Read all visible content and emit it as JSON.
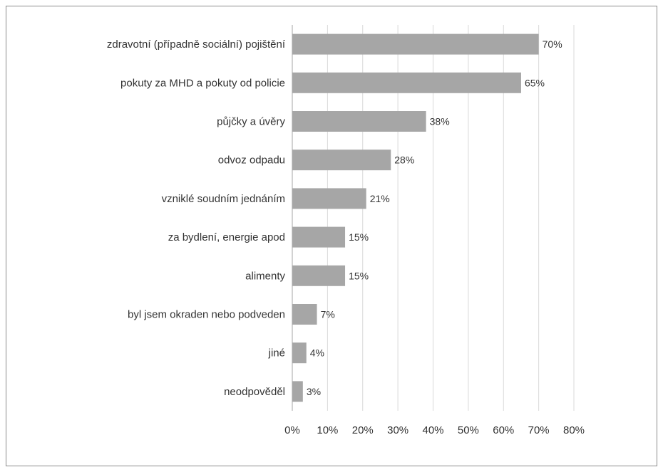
{
  "chart_data": {
    "type": "bar",
    "orientation": "horizontal",
    "categories": [
      "zdravotní (případně sociální) pojištění",
      "pokuty za MHD a pokuty od policie",
      "půjčky a úvěry",
      "odvoz odpadu",
      "vzniklé soudním jednáním",
      "za bydlení, energie apod",
      "alimenty",
      "byl jsem okraden nebo podveden",
      "jiné",
      "neodpověděl"
    ],
    "values": [
      70,
      65,
      38,
      28,
      21,
      15,
      15,
      7,
      4,
      3
    ],
    "value_labels": [
      "70%",
      "65%",
      "38%",
      "28%",
      "21%",
      "15%",
      "15%",
      "7%",
      "4%",
      "3%"
    ],
    "x_ticks": [
      "0%",
      "10%",
      "20%",
      "30%",
      "40%",
      "50%",
      "60%",
      "70%",
      "80%"
    ],
    "xlim": [
      0,
      80
    ],
    "grid": true,
    "legend": "none",
    "colors": {
      "bar": "#a6a6a6",
      "grid": "#d9d9d9",
      "text": "#333333"
    }
  }
}
